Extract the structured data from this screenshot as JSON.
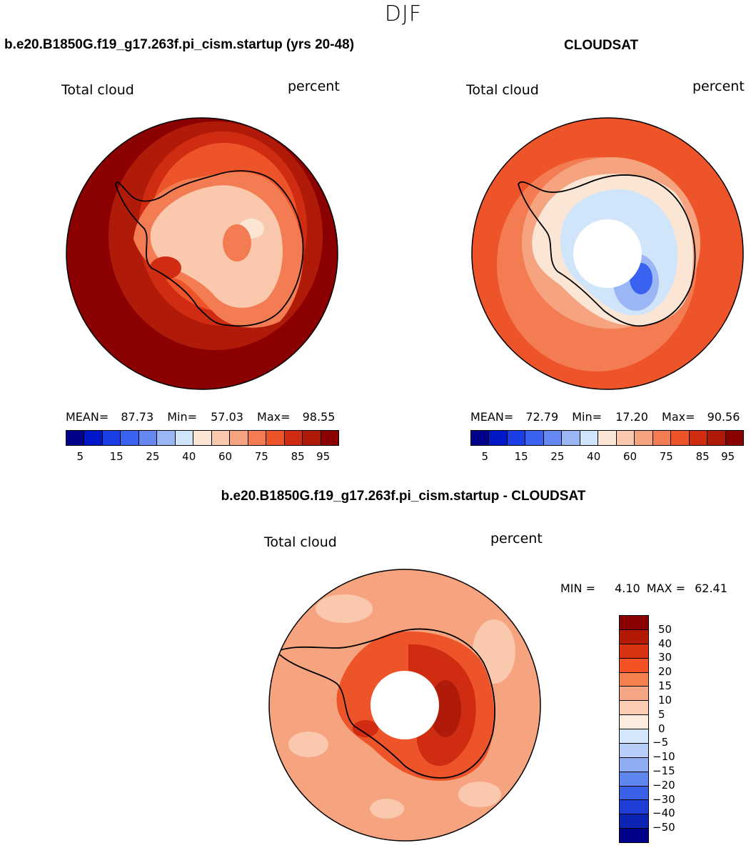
{
  "season": "DJF",
  "panel1": {
    "title": "b.e20.B1850G.f19_g17.263f.pi_cism.startup (yrs 20-48)",
    "left_label": "Total cloud",
    "right_label": "percent",
    "stats": {
      "mean_label": "MEAN=",
      "mean": "87.73",
      "min_label": "Min=",
      "min": "57.03",
      "max_label": "Max=",
      "max": "98.55"
    }
  },
  "panel2": {
    "title": "CLOUDSAT",
    "left_label": "Total cloud",
    "right_label": "percent",
    "stats": {
      "mean_label": "MEAN=",
      "mean": "72.79",
      "min_label": "Min=",
      "min": "17.20",
      "max_label": "Max=",
      "max": "90.56"
    }
  },
  "panel3": {
    "title": "b.e20.B1850G.f19_g17.263f.pi_cism.startup - CLOUDSAT",
    "left_label": "Total cloud",
    "right_label": "percent",
    "minmax": {
      "min_label": "MIN =",
      "min": "4.10",
      "max_label": "MAX =",
      "max": "62.41"
    }
  },
  "colorbar_abs": {
    "colors": [
      "#00008b",
      "#0018c8",
      "#1a3ee6",
      "#3a62f0",
      "#6688f2",
      "#9ab6f5",
      "#d1e5fa",
      "#fbe6d6",
      "#f9c8ad",
      "#f6a47f",
      "#f37c52",
      "#ee5429",
      "#cf2c12",
      "#b01a08",
      "#8b0000"
    ],
    "ticks": [
      "5",
      "15",
      "25",
      "40",
      "60",
      "75",
      "85",
      "95"
    ]
  },
  "colorbar_diff": {
    "colors": [
      "#8b0000",
      "#b31a06",
      "#d93210",
      "#f25224",
      "#f5804f",
      "#f7a685",
      "#fbccb2",
      "#fcece0",
      "#d6e6fa",
      "#b7cef8",
      "#8eacf2",
      "#5f86ee",
      "#3b60e8",
      "#1f3ed6",
      "#0b24b4",
      "#00008b"
    ],
    "ticks": [
      "50",
      "40",
      "30",
      "20",
      "15",
      "10",
      "5",
      "0",
      "−5",
      "−10",
      "−15",
      "−20",
      "−30",
      "−40",
      "−50"
    ]
  },
  "map_colors": {
    "ocean_model": "#8b0000",
    "ocean_obs": "#ee5429",
    "ocean_diff": "#f6a47f",
    "ice_model": "#f9c8ad",
    "ice_obs": "#d1e5fa",
    "ice_diff": "#ee5429",
    "coast": "#000000"
  }
}
